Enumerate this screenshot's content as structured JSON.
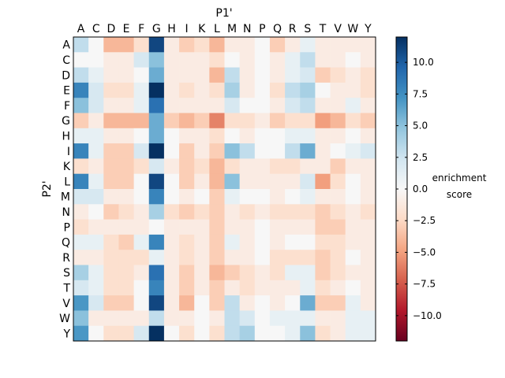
{
  "chart_data": {
    "type": "heatmap",
    "title": "",
    "xlabel": "P1'",
    "ylabel": "P2'",
    "x_categories": [
      "A",
      "C",
      "D",
      "E",
      "F",
      "G",
      "H",
      "I",
      "K",
      "L",
      "M",
      "N",
      "P",
      "Q",
      "R",
      "S",
      "T",
      "V",
      "W",
      "Y"
    ],
    "y_categories": [
      "A",
      "C",
      "D",
      "E",
      "F",
      "G",
      "H",
      "I",
      "K",
      "L",
      "M",
      "N",
      "P",
      "Q",
      "R",
      "S",
      "T",
      "V",
      "W",
      "Y"
    ],
    "colormap": "RdBu",
    "vmin": -12,
    "vmax": 12,
    "colorbar": {
      "label_line1": "enrichment",
      "label_line2": "score",
      "ticks": [
        10.0,
        7.5,
        5.0,
        2.5,
        0.0,
        -2.5,
        -5.0,
        -7.5,
        -10.0
      ],
      "tick_labels": [
        "10.0",
        "7.5",
        "5.0",
        "2.5",
        "0.0",
        "−2.5",
        "−5.0",
        "−7.5",
        "−10.0"
      ]
    },
    "values": [
      [
        3,
        0,
        -4,
        -4,
        -2,
        11,
        -1,
        -3,
        -2,
        -4,
        -1,
        -1,
        0,
        -3,
        -1,
        1,
        -1,
        -1,
        -1,
        -1
      ],
      [
        0,
        0,
        -1,
        -1,
        2,
        5,
        -1,
        -1,
        -1,
        -2,
        0,
        -1,
        0,
        -1,
        1,
        3,
        -1,
        -1,
        0,
        -1
      ],
      [
        3,
        1,
        -1,
        -1,
        0,
        6,
        -1,
        -1,
        -1,
        -4,
        3,
        -1,
        0,
        -1,
        1,
        2,
        -3,
        -2,
        -1,
        -2
      ],
      [
        8,
        2,
        -2,
        -2,
        1,
        12,
        -1,
        -2,
        -1,
        -2,
        4,
        -1,
        0,
        -2,
        3,
        4,
        0,
        -1,
        -1,
        -2
      ],
      [
        5,
        2,
        -1,
        -1,
        1,
        9,
        -1,
        -1,
        -1,
        -1,
        2,
        0,
        0,
        -1,
        2,
        3,
        -1,
        -1,
        1,
        -1
      ],
      [
        -3,
        -1,
        -4,
        -4,
        -4,
        6,
        -3,
        -4,
        -3,
        -6,
        -2,
        -2,
        -1,
        -3,
        -2,
        -2,
        -5,
        -4,
        -2,
        -3
      ],
      [
        1,
        1,
        -1,
        -1,
        0,
        6,
        0,
        -1,
        -1,
        -2,
        0,
        -1,
        0,
        0,
        1,
        1,
        -1,
        -1,
        0,
        -1
      ],
      [
        8,
        1,
        -3,
        -3,
        2,
        12,
        0,
        -3,
        -1,
        -3,
        5,
        3,
        0,
        0,
        3,
        6,
        -1,
        0,
        1,
        2
      ],
      [
        -2,
        -1,
        -3,
        -3,
        -2,
        2,
        -1,
        -3,
        -2,
        -4,
        -2,
        -1,
        -1,
        -2,
        -2,
        -1,
        -1,
        -3,
        -1,
        -1
      ],
      [
        8,
        1,
        -3,
        -3,
        0,
        11,
        0,
        -3,
        -1,
        -4,
        5,
        -1,
        -1,
        -1,
        -1,
        2,
        -5,
        -2,
        0,
        -1
      ],
      [
        2,
        2,
        -1,
        -1,
        0,
        8,
        0,
        -1,
        0,
        -3,
        1,
        0,
        0,
        -1,
        0,
        1,
        -1,
        -1,
        0,
        -1
      ],
      [
        -1,
        0,
        -3,
        -2,
        -1,
        4,
        -2,
        -3,
        -2,
        -3,
        -1,
        -2,
        -1,
        -2,
        -2,
        -2,
        -3,
        -2,
        -1,
        -2
      ],
      [
        -2,
        -1,
        -1,
        -1,
        -1,
        0,
        -1,
        -1,
        -1,
        -3,
        -1,
        -1,
        0,
        -1,
        -1,
        -1,
        -3,
        -3,
        -1,
        -1
      ],
      [
        1,
        1,
        -2,
        -3,
        1,
        8,
        -1,
        -2,
        -1,
        -3,
        1,
        -1,
        0,
        -1,
        0,
        0,
        -2,
        -2,
        -1,
        -1
      ],
      [
        -1,
        -1,
        -2,
        -2,
        -2,
        1,
        -1,
        -2,
        -1,
        -3,
        -1,
        -1,
        0,
        -2,
        -2,
        -2,
        -3,
        -2,
        0,
        -1
      ],
      [
        4,
        1,
        -2,
        -2,
        -1,
        9,
        -1,
        -3,
        -1,
        -4,
        -3,
        -2,
        -1,
        -2,
        1,
        1,
        -3,
        -2,
        -1,
        -1
      ],
      [
        2,
        1,
        -2,
        -2,
        0,
        8,
        -1,
        -3,
        -1,
        -3,
        -1,
        -2,
        -1,
        -1,
        -1,
        1,
        -2,
        -1,
        0,
        -1
      ],
      [
        7,
        2,
        -3,
        -3,
        0,
        11,
        -1,
        -4,
        0,
        -3,
        3,
        -1,
        0,
        -1,
        0,
        6,
        -3,
        -3,
        1,
        -1
      ],
      [
        5,
        -1,
        -1,
        -1,
        -1,
        3,
        -1,
        -1,
        0,
        -1,
        3,
        2,
        0,
        1,
        1,
        1,
        -1,
        -1,
        1,
        1
      ],
      [
        7,
        0,
        -2,
        -2,
        2,
        12,
        0,
        -2,
        0,
        -2,
        3,
        4,
        0,
        0,
        1,
        5,
        -2,
        -1,
        1,
        1
      ]
    ]
  }
}
